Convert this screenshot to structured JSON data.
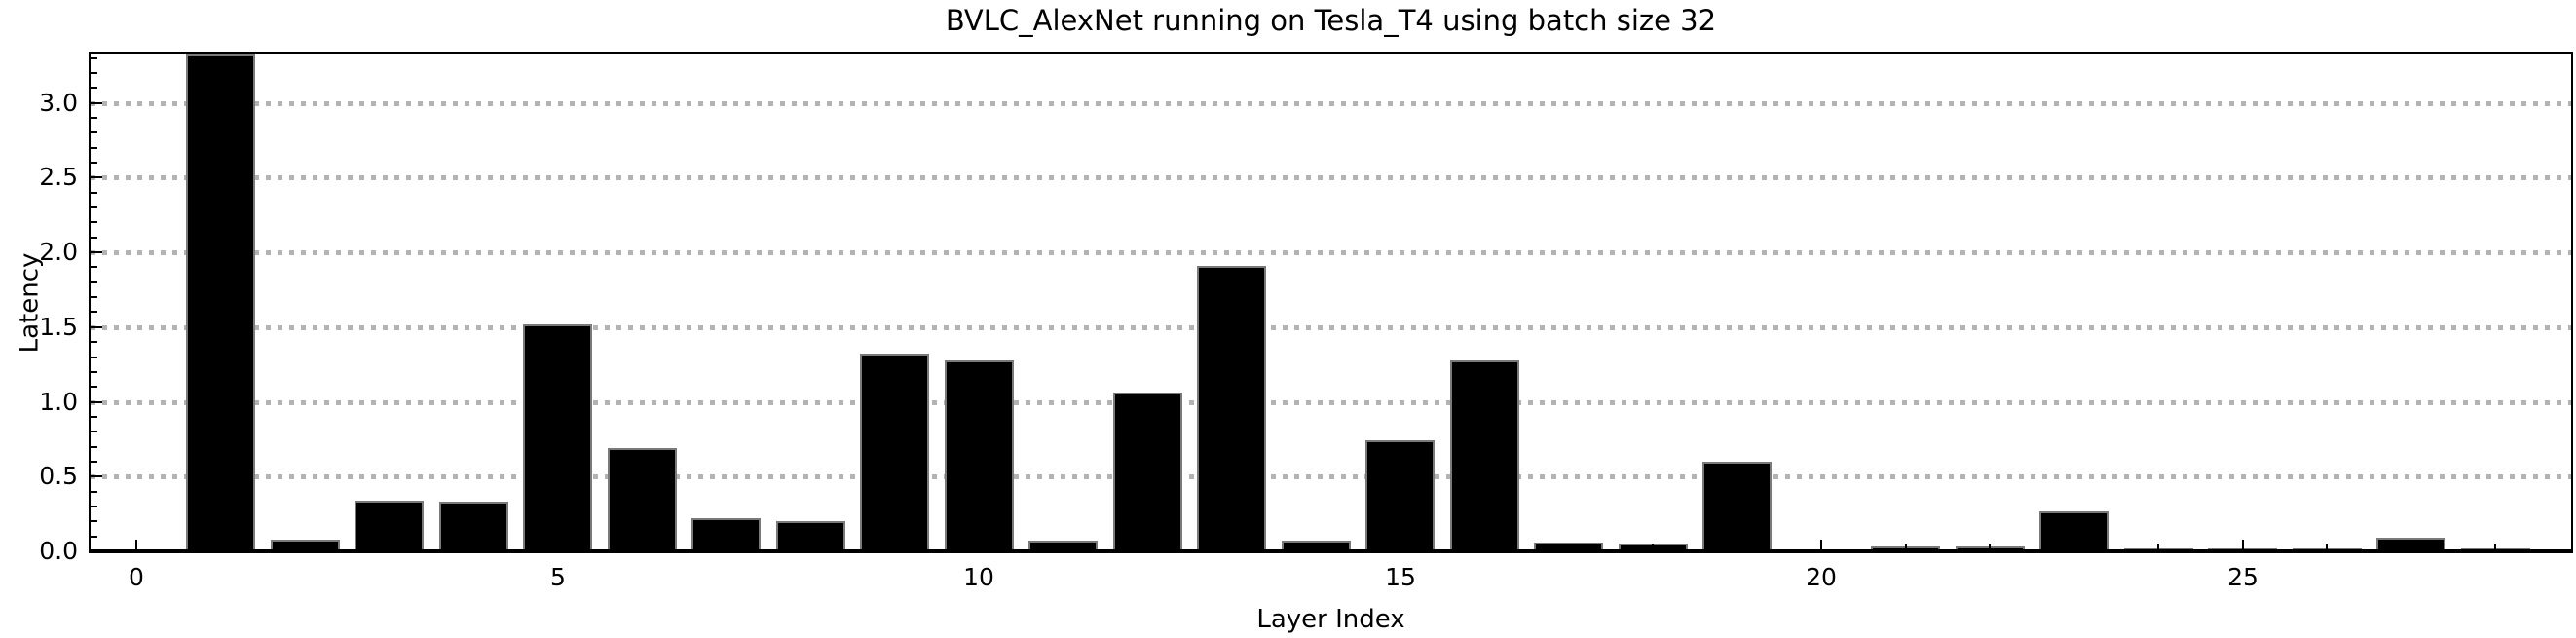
{
  "title": "BVLC_AlexNet running on Tesla_T4 using batch size 32",
  "chart_data": {
    "type": "bar",
    "title": "BVLC_AlexNet running on Tesla_T4 using batch size 32",
    "xlabel": "Layer Index",
    "ylabel": "Latency",
    "categories": [
      1,
      2,
      3,
      4,
      5,
      6,
      7,
      8,
      9,
      10,
      11,
      12,
      13,
      14,
      15,
      16,
      17,
      18,
      19,
      20,
      21,
      22,
      23,
      24,
      25,
      26,
      27,
      28
    ],
    "values": [
      3.34,
      0.08,
      0.34,
      0.33,
      1.52,
      0.69,
      0.22,
      0.2,
      1.32,
      1.28,
      0.07,
      1.06,
      1.91,
      0.07,
      0.74,
      1.28,
      0.06,
      0.05,
      0.6,
      0.01,
      0.03,
      0.03,
      0.27,
      0.02,
      0.02,
      0.02,
      0.09,
      0.02
    ],
    "xticks": [
      0,
      5,
      10,
      15,
      20,
      25
    ],
    "yticks": [
      0.0,
      0.5,
      1.0,
      1.5,
      2.0,
      2.5,
      3.0
    ],
    "ytick_labels": [
      "0.0",
      "0.5",
      "1.0",
      "1.5",
      "2.0",
      "2.5",
      "3.0"
    ],
    "xlim": [
      -0.55,
      28.9
    ],
    "ylim": [
      0,
      3.33
    ],
    "bar_width": 0.82,
    "bar_color": "#000000",
    "bar_edge_color": "#7a7a7a",
    "grid": true,
    "grid_style": "dotted",
    "grid_color": "#b3b3b3",
    "legend_position": "none",
    "x_minor_tick_every": 1,
    "y_minor_tick_every": 0.1
  }
}
